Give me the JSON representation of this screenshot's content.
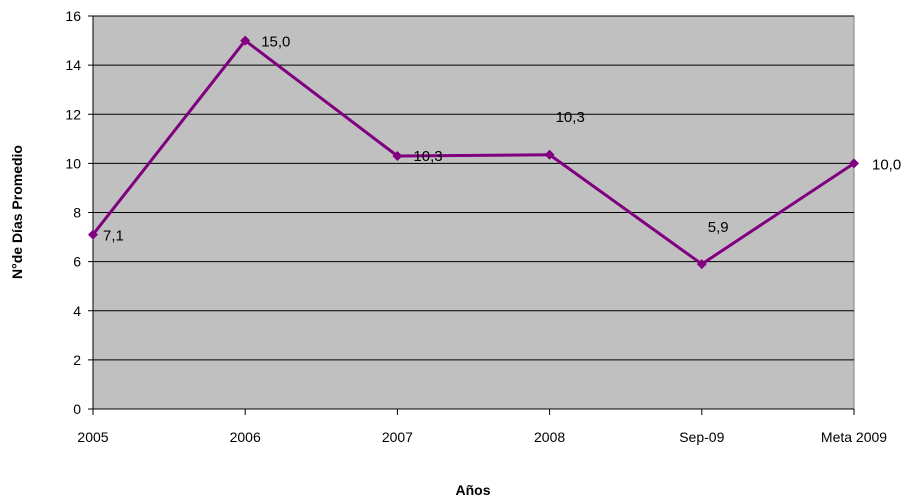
{
  "chart_data": {
    "type": "line",
    "title": "",
    "xlabel": "Años",
    "ylabel": "N°de Días Promedio",
    "categories": [
      "2005",
      "2006",
      "2007",
      "2008",
      "Sep-09",
      "Meta 2009"
    ],
    "series": [
      {
        "values": [
          7.1,
          15.0,
          10.3,
          10.35,
          5.9,
          10.0
        ],
        "data_labels": [
          "7,1",
          "15,0",
          "10,3",
          "10,3",
          "5,9",
          "10,0"
        ]
      }
    ],
    "ylim": [
      0,
      16
    ],
    "yticks": [
      "0",
      "2",
      "4",
      "6",
      "8",
      "10",
      "12",
      "14",
      "16"
    ],
    "grid": true,
    "legend": "none",
    "colors": {
      "line": "#800080",
      "plot_background": "#c0c0c0",
      "grid": "#000000"
    }
  }
}
